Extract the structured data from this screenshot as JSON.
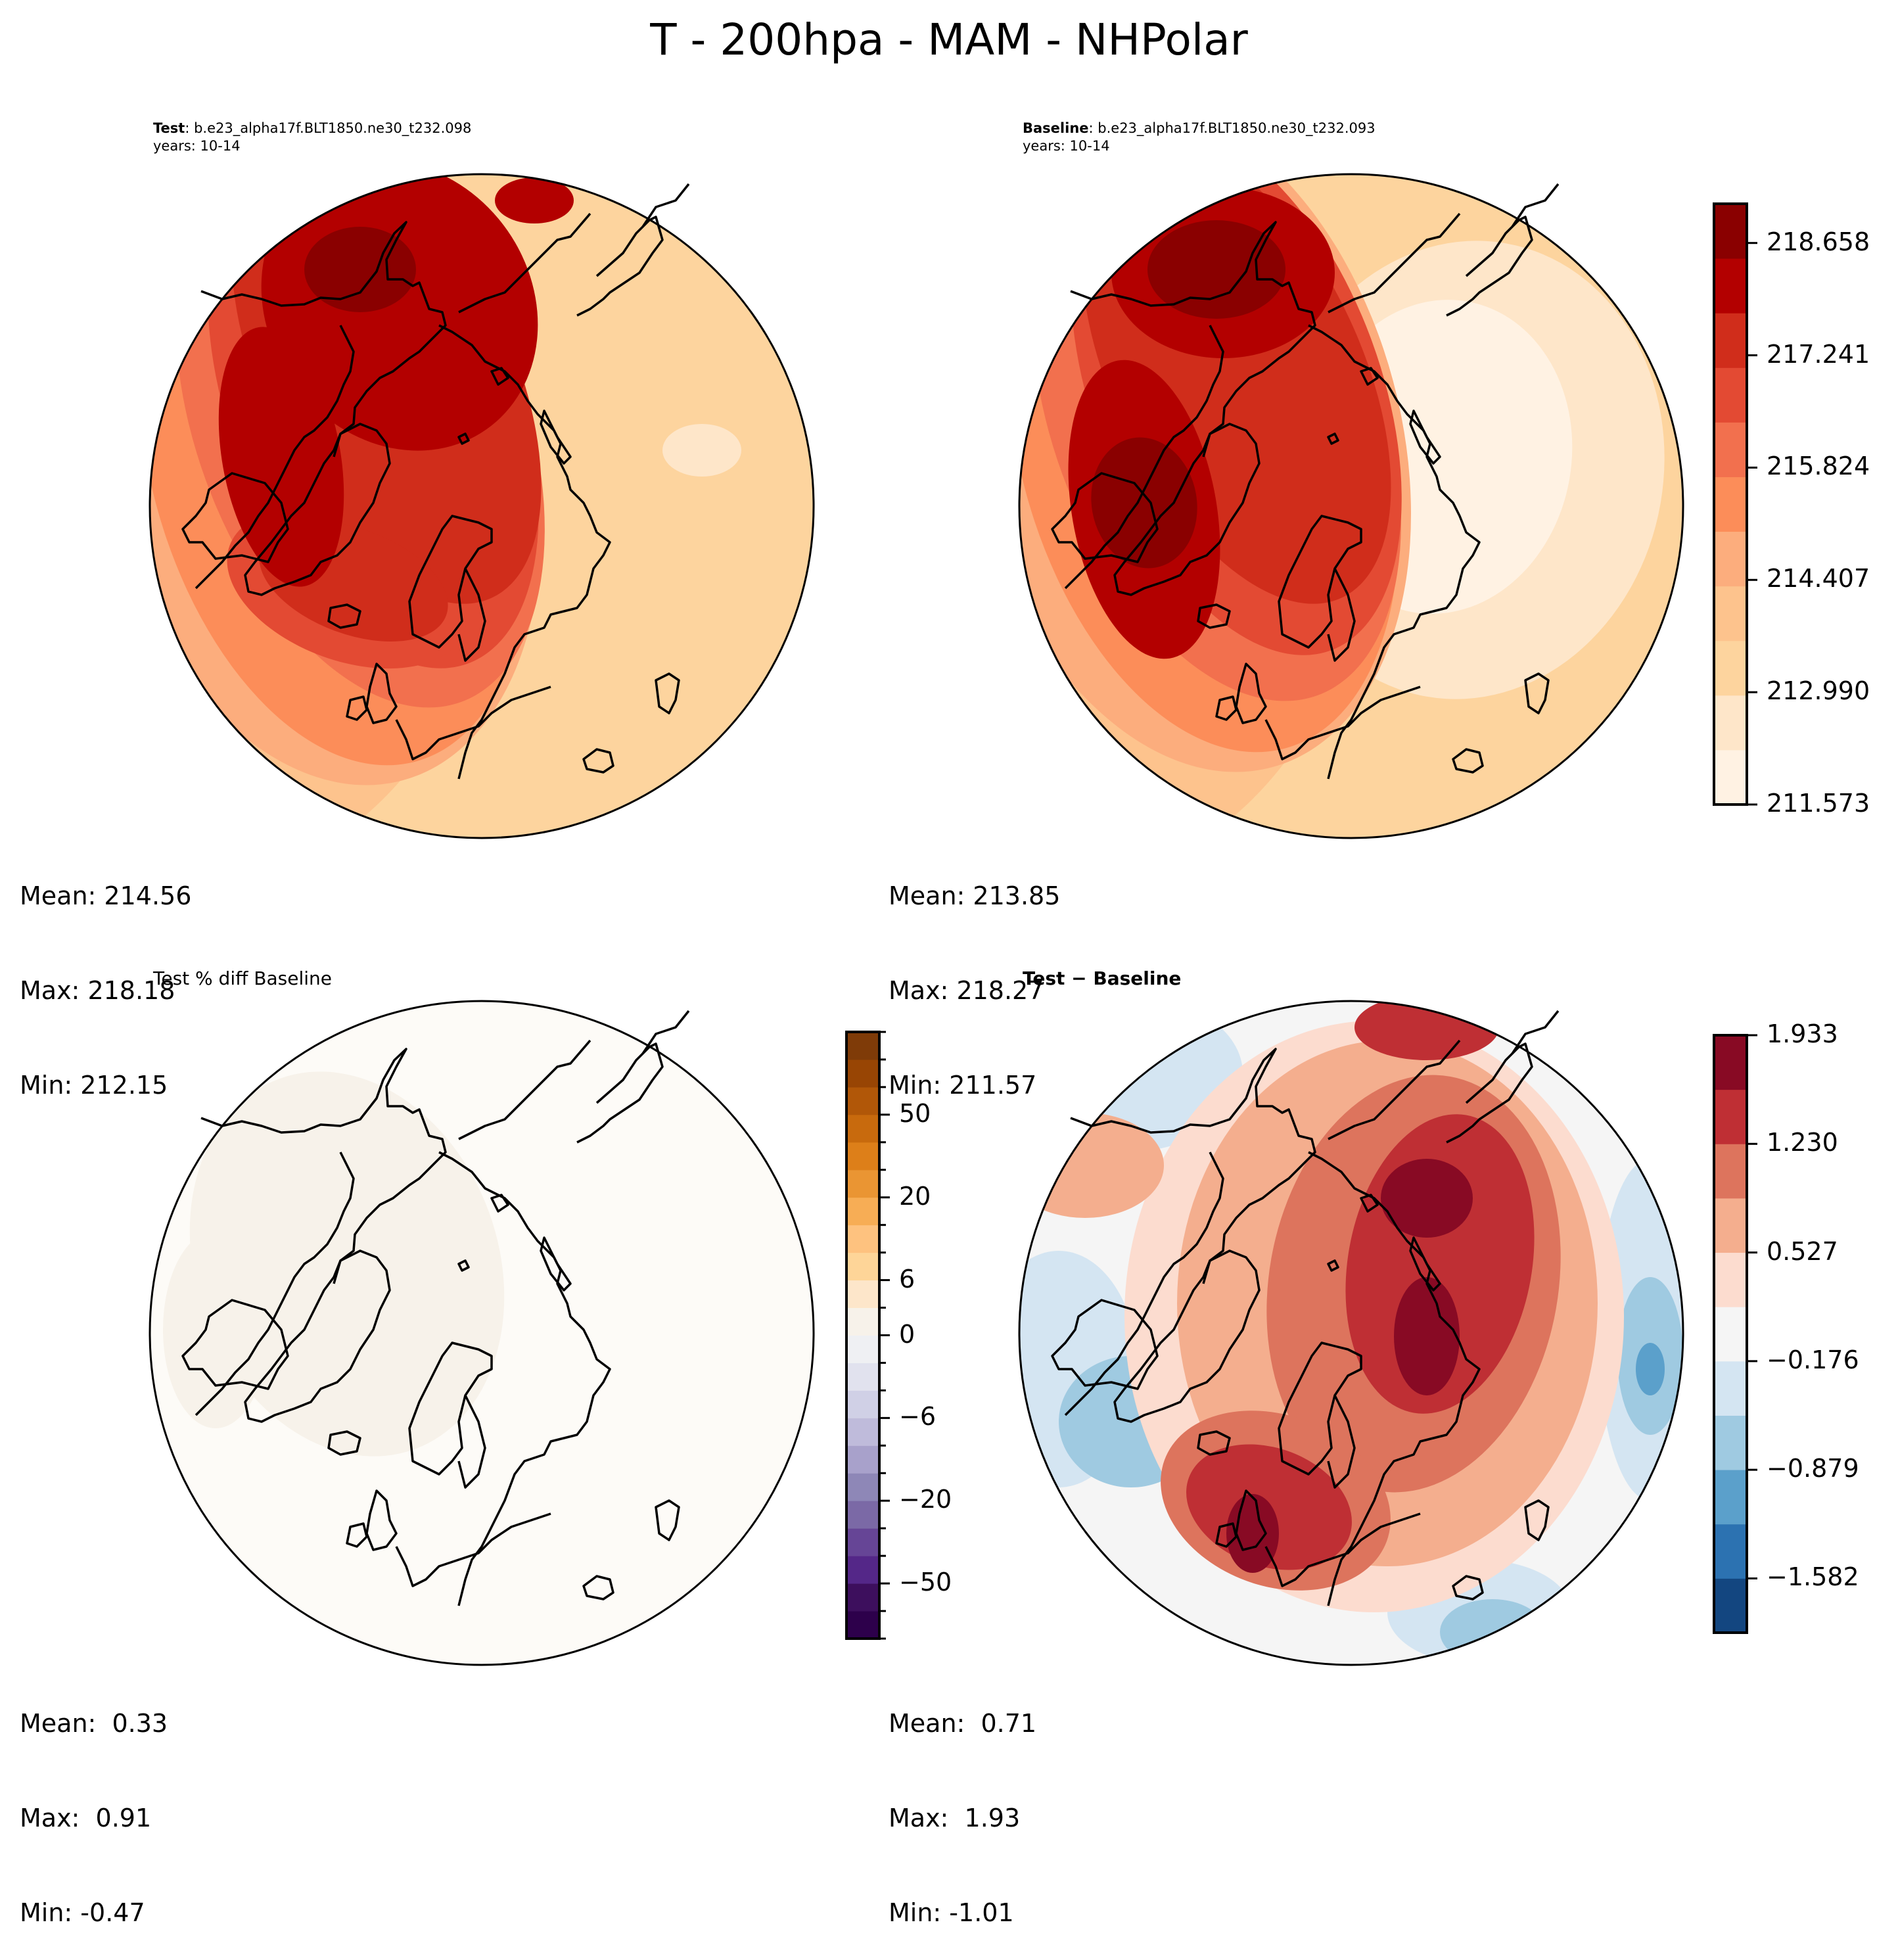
{
  "figure": {
    "title": "T - 200hpa - MAM - NHPolar"
  },
  "panels": {
    "test": {
      "label_bold": "Test",
      "label_rest": ": b.e23_alpha17f.BLT1850.ne30_t232.098",
      "years": "years: 10-14",
      "stats": {
        "mean": "Mean: 214.56",
        "max": "Max: 218.18",
        "min": "Min: 212.15"
      }
    },
    "baseline": {
      "label_bold": "Baseline",
      "label_rest": ": b.e23_alpha17f.BLT1850.ne30_t232.093",
      "years": "years: 10-14",
      "stats": {
        "mean": "Mean: 213.85",
        "max": "Max: 218.27",
        "min": "Min: 211.57"
      }
    },
    "pctdiff": {
      "title": "Test % diff Baseline",
      "stats": {
        "mean": "Mean:  0.33",
        "max": "Max:  0.91",
        "min": "Min: -0.47"
      }
    },
    "diff": {
      "title": "Test − Baseline",
      "stats": {
        "mean": "Mean:  0.71",
        "max": "Max:  1.93",
        "min": "Min: -1.01"
      }
    }
  },
  "chart_data": [
    {
      "type": "heatmap",
      "title": "Test : b.e23_alpha17f.BLT1850.ne30_t232.098 (years: 10-14)",
      "projection": "north-polar-stereographic",
      "variable": "T",
      "level": "200hpa",
      "season": "MAM",
      "stats": {
        "mean": 214.56,
        "max": 218.18,
        "min": 212.15
      },
      "colorbar": "shared-temperature"
    },
    {
      "type": "heatmap",
      "title": "Baseline : b.e23_alpha17f.BLT1850.ne30_t232.093 (years: 10-14)",
      "projection": "north-polar-stereographic",
      "variable": "T",
      "level": "200hpa",
      "season": "MAM",
      "stats": {
        "mean": 213.85,
        "max": 218.27,
        "min": 211.57
      },
      "colorbar": "shared-temperature"
    },
    {
      "type": "heatmap",
      "title": "Test % diff Baseline",
      "projection": "north-polar-stereographic",
      "stats": {
        "mean": 0.33,
        "max": 0.91,
        "min": -0.47
      },
      "colorbar": "pctdiff"
    },
    {
      "type": "heatmap",
      "title": "Test − Baseline",
      "projection": "north-polar-stereographic",
      "stats": {
        "mean": 0.71,
        "max": 1.93,
        "min": -1.01
      },
      "colorbar": "diff"
    }
  ],
  "colorbars": {
    "temperature": {
      "range": [
        211.573,
        219.153
      ],
      "tick_values": [
        211.573,
        212.99,
        214.407,
        215.824,
        217.241,
        218.658
      ],
      "tick_labels": [
        "211.573",
        "212.990",
        "214.407",
        "215.824",
        "217.241",
        "218.658"
      ],
      "colors": [
        "#fff2e3",
        "#fee6c9",
        "#fdd49e",
        "#fdc38d",
        "#fcad7d",
        "#fc8d59",
        "#f2704e",
        "#e34a33",
        "#d02d1b",
        "#b30000",
        "#8a0000"
      ]
    },
    "pctdiff": {
      "levels": 22,
      "tick_labels": [
        "50",
        "20",
        "6",
        "0",
        "−6",
        "−20",
        "−50"
      ],
      "tick_level_index": [
        19,
        16,
        13,
        11,
        8,
        5,
        2
      ],
      "colors": [
        "#2d004b",
        "#3d0f5d",
        "#542788",
        "#664596",
        "#7b69a6",
        "#8e87b7",
        "#a8a1cb",
        "#bfbbdb",
        "#d0d0e6",
        "#e1e2ee",
        "#eff0f3",
        "#f7f2ea",
        "#fde6ca",
        "#fed598",
        "#fec27f",
        "#f7ad55",
        "#ea9533",
        "#dd7f19",
        "#c86a0d",
        "#b15708",
        "#984504",
        "#7f3b08"
      ]
    },
    "diff": {
      "range": [
        -1.933,
        1.933
      ],
      "tick_values": [
        -1.582,
        -0.879,
        -0.176,
        0.527,
        1.23,
        1.933
      ],
      "tick_labels": [
        "−1.582",
        "−0.879",
        "−0.176",
        "0.527",
        "1.230",
        "1.933"
      ],
      "colors": [
        "#134680",
        "#2c72b1",
        "#5ba0cb",
        "#9fcae1",
        "#d4e5f2",
        "#f5f5f5",
        "#fcdccf",
        "#f4ae8e",
        "#dd745d",
        "#bf2f34",
        "#880a24"
      ]
    }
  }
}
